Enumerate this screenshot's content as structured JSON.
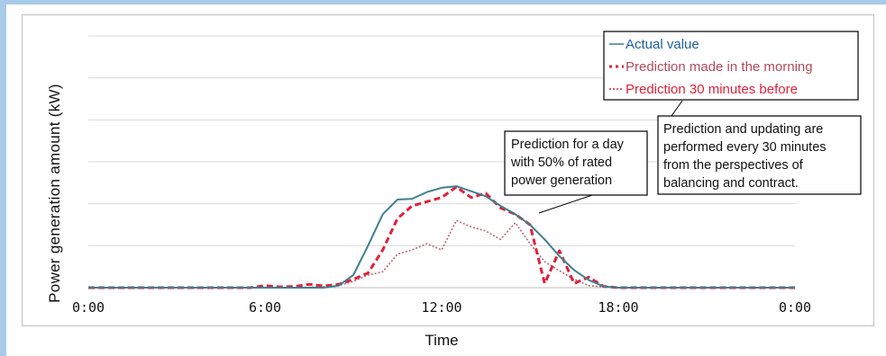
{
  "chart_data": {
    "type": "line",
    "ylabel": "Power generation amount (kW)",
    "xlabel": "Time",
    "xlim": [
      0,
      24
    ],
    "x_ticks": [
      {
        "value": 0,
        "label": "0:00"
      },
      {
        "value": 6,
        "label": "6:00"
      },
      {
        "value": 12,
        "label": "12:00"
      },
      {
        "value": 18,
        "label": "18:00"
      },
      {
        "value": 24,
        "label": "0:00"
      }
    ],
    "ylim": [
      0,
      6
    ],
    "y_gridlines": [
      1,
      2,
      3,
      4,
      5,
      6
    ],
    "grid": true,
    "legend_position": "top-right",
    "series": [
      {
        "name": "Actual value",
        "color": "#3f7f8f",
        "style": "solid",
        "points": [
          [
            0,
            0
          ],
          [
            6,
            0
          ],
          [
            7,
            0
          ],
          [
            8,
            0
          ],
          [
            8.5,
            0.05
          ],
          [
            9,
            0.3
          ],
          [
            9.5,
            1.0
          ],
          [
            10,
            1.75
          ],
          [
            10.5,
            2.1
          ],
          [
            11,
            2.12
          ],
          [
            11.5,
            2.28
          ],
          [
            12,
            2.38
          ],
          [
            12.5,
            2.42
          ],
          [
            13,
            2.3
          ],
          [
            13.5,
            2.18
          ],
          [
            14,
            1.95
          ],
          [
            14.5,
            1.75
          ],
          [
            15,
            1.5
          ],
          [
            15.5,
            1.15
          ],
          [
            16,
            0.75
          ],
          [
            16.5,
            0.42
          ],
          [
            17,
            0.18
          ],
          [
            17.5,
            0.03
          ],
          [
            18,
            0
          ],
          [
            20,
            0
          ],
          [
            24,
            0
          ]
        ]
      },
      {
        "name": "Prediction made in the morning",
        "color": "#e0213b",
        "style": "dashed",
        "points": [
          [
            0,
            0
          ],
          [
            5.5,
            0
          ],
          [
            6,
            0.05
          ],
          [
            6.5,
            0.02
          ],
          [
            7,
            0.03
          ],
          [
            7.5,
            0.08
          ],
          [
            8,
            0.04
          ],
          [
            8.5,
            0.08
          ],
          [
            9,
            0.2
          ],
          [
            9.5,
            0.35
          ],
          [
            10,
            0.9
          ],
          [
            10.5,
            1.65
          ],
          [
            11,
            1.95
          ],
          [
            11.5,
            2.05
          ],
          [
            12,
            2.15
          ],
          [
            12.5,
            2.4
          ],
          [
            13,
            2.15
          ],
          [
            13.5,
            2.25
          ],
          [
            14,
            1.9
          ],
          [
            14.5,
            1.75
          ],
          [
            15,
            1.5
          ],
          [
            15.5,
            0.1
          ],
          [
            16,
            0.88
          ],
          [
            16.5,
            0.1
          ],
          [
            17,
            0.25
          ],
          [
            17.5,
            0.03
          ],
          [
            18,
            0
          ],
          [
            20,
            0
          ],
          [
            24,
            0
          ]
        ]
      },
      {
        "name": "Prediction 30 minutes before",
        "color": "#b56a76",
        "style": "dotted",
        "points": [
          [
            0,
            0
          ],
          [
            6,
            0
          ],
          [
            7,
            0
          ],
          [
            8,
            0.02
          ],
          [
            8.5,
            0.05
          ],
          [
            9,
            0.15
          ],
          [
            9.5,
            0.3
          ],
          [
            10,
            0.38
          ],
          [
            10.5,
            0.8
          ],
          [
            11,
            0.9
          ],
          [
            11.5,
            1.05
          ],
          [
            12,
            0.9
          ],
          [
            12.5,
            1.6
          ],
          [
            13,
            1.45
          ],
          [
            13.5,
            1.35
          ],
          [
            14,
            1.15
          ],
          [
            14.5,
            1.55
          ],
          [
            15,
            1.05
          ],
          [
            15.5,
            0.62
          ],
          [
            16,
            0.4
          ],
          [
            16.5,
            0.2
          ],
          [
            17,
            0.05
          ],
          [
            17.5,
            0.02
          ],
          [
            18,
            0
          ],
          [
            24,
            0
          ]
        ]
      }
    ],
    "annotations": [
      {
        "lines": [
          "Prediction for a day",
          "with 50% of rated",
          "power generation"
        ]
      },
      {
        "lines": [
          "Prediction and updating are",
          "performed every 30 minutes",
          "from the perspectives of",
          "balancing and contract."
        ]
      }
    ]
  }
}
